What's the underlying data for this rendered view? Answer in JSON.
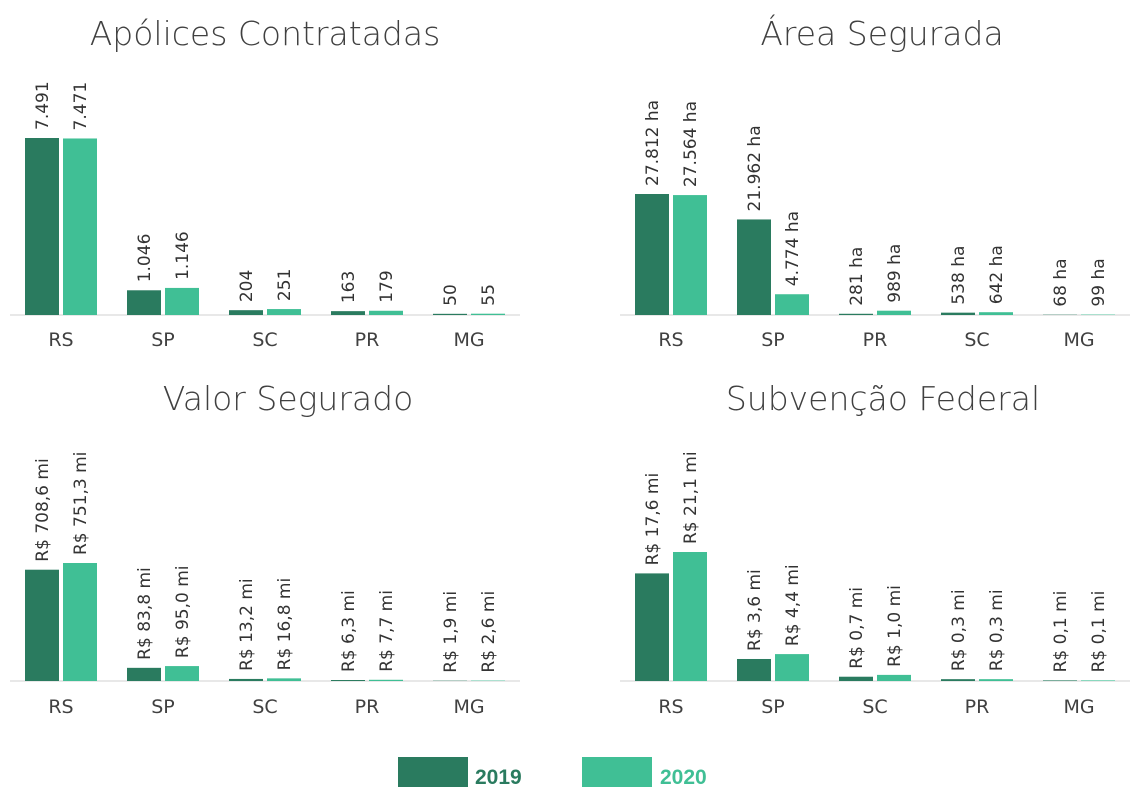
{
  "chart_data": [
    {
      "type": "bar",
      "title": "Apólices Contratadas",
      "categories": [
        "RS",
        "SP",
        "SC",
        "PR",
        "MG"
      ],
      "series": [
        {
          "name": "2019",
          "color": "#2a7b5f",
          "values": [
            7491,
            1046,
            204,
            163,
            50
          ],
          "value_labels": [
            "7.491",
            "1.046",
            "204",
            "163",
            "50"
          ]
        },
        {
          "name": "2020",
          "color": "#40bf95",
          "values": [
            7471,
            1146,
            251,
            179,
            55
          ],
          "value_labels": [
            "7.471",
            "1.146",
            "251",
            "179",
            "55"
          ]
        }
      ]
    },
    {
      "type": "bar",
      "title": "Área Segurada",
      "categories": [
        "RS",
        "SP",
        "PR",
        "SC",
        "MG"
      ],
      "series": [
        {
          "name": "2019",
          "color": "#2a7b5f",
          "values": [
            27812,
            21962,
            281,
            538,
            68
          ],
          "value_labels": [
            "27.812 ha",
            "21.962 ha",
            "281 ha",
            "538 ha",
            "68 ha"
          ]
        },
        {
          "name": "2020",
          "color": "#40bf95",
          "values": [
            27564,
            4774,
            989,
            642,
            99
          ],
          "value_labels": [
            "27.564 ha",
            "4.774 ha",
            "989 ha",
            "642 ha",
            "99 ha"
          ]
        }
      ]
    },
    {
      "type": "bar",
      "title": "Valor Segurado",
      "categories": [
        "RS",
        "SP",
        "SC",
        "PR",
        "MG"
      ],
      "series": [
        {
          "name": "2019",
          "color": "#2a7b5f",
          "values": [
            708.6,
            83.8,
            13.2,
            6.3,
            1.9
          ],
          "value_labels": [
            "R$ 708,6 mi",
            "R$ 83,8 mi",
            "R$ 13,2 mi",
            "R$ 6,3 mi",
            "R$ 1,9 mi"
          ]
        },
        {
          "name": "2020",
          "color": "#40bf95",
          "values": [
            751.3,
            95.0,
            16.8,
            7.7,
            2.6
          ],
          "value_labels": [
            "R$ 751,3 mi",
            "R$ 95,0 mi",
            "R$ 16,8 mi",
            "R$ 7,7 mi",
            "R$ 2,6 mi"
          ]
        }
      ]
    },
    {
      "type": "bar",
      "title": "Subvenção Federal",
      "categories": [
        "RS",
        "SP",
        "SC",
        "PR",
        "MG"
      ],
      "series": [
        {
          "name": "2019",
          "color": "#2a7b5f",
          "values": [
            17.6,
            3.6,
            0.7,
            0.3,
            0.1
          ],
          "value_labels": [
            "R$ 17,6 mi",
            "R$ 3,6 mi",
            "R$ 0,7 mi",
            "R$ 0,3 mi",
            "R$ 0,1 mi"
          ]
        },
        {
          "name": "2020",
          "color": "#40bf95",
          "values": [
            21.1,
            4.4,
            1.0,
            0.3,
            0.1
          ],
          "value_labels": [
            "R$ 21,1 mi",
            "R$ 4,4 mi",
            "R$ 1,0 mi",
            "R$ 0,3 mi",
            "R$ 0,1 mi"
          ]
        }
      ]
    }
  ]
}
